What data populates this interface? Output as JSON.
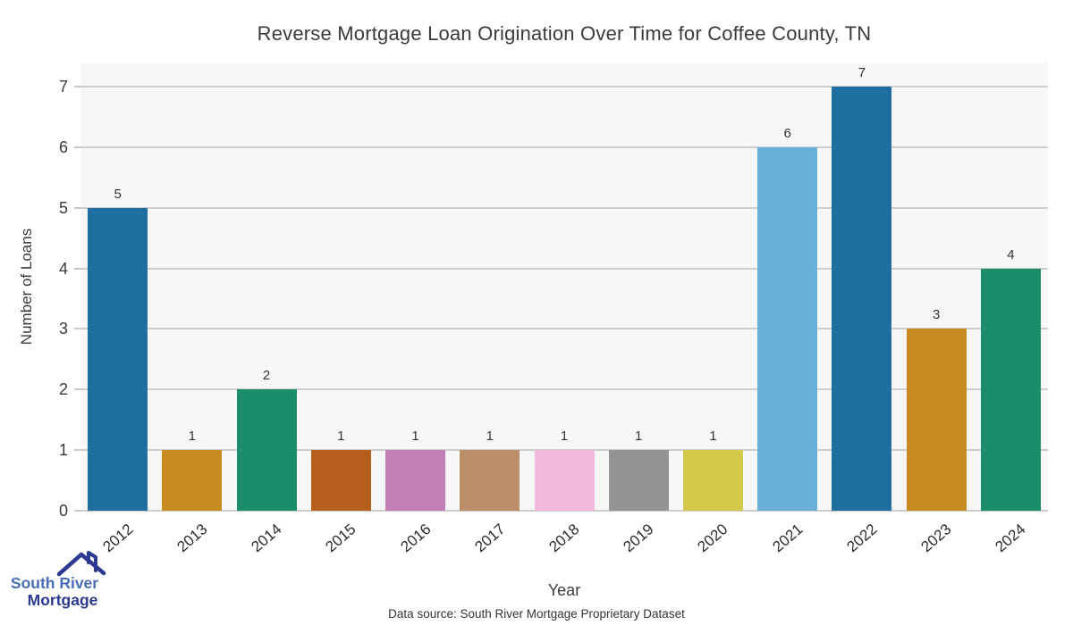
{
  "title": "Reverse Mortgage Loan Origination Over Time for Coffee County, TN",
  "footer": {
    "source": "Data source: South River Mortgage Proprietary Dataset"
  },
  "logo": {
    "line1": "South River",
    "line2": "Mortgage",
    "line1_color": "#4a6db8",
    "line2_color": "#2b3990",
    "roof_color": "#2b3990"
  },
  "chart_data": {
    "type": "bar",
    "title": "Reverse Mortgage Loan Origination Over Time for Coffee County, TN",
    "xlabel": "Year",
    "ylabel": "Number of Loans",
    "categories": [
      "2012",
      "2013",
      "2014",
      "2015",
      "2016",
      "2017",
      "2018",
      "2019",
      "2020",
      "2021",
      "2022",
      "2023",
      "2024"
    ],
    "values": [
      5,
      1,
      2,
      1,
      1,
      1,
      1,
      1,
      1,
      6,
      7,
      3,
      4
    ],
    "bar_colors": [
      "#1e6f9f",
      "#c78b1f",
      "#1a8e6a",
      "#b65e1c",
      "#c17fb5",
      "#bb8e68",
      "#f2badd",
      "#949494",
      "#d3c849",
      "#68b0d8",
      "#1e6f9f",
      "#c78b1f",
      "#1a8e6a"
    ],
    "yticks": [
      0,
      1,
      2,
      3,
      4,
      5,
      6,
      7
    ],
    "ylim": [
      0,
      7.4
    ],
    "grid": true,
    "legend": false,
    "bar_value_labels": true,
    "plot_background": "#f7f7f7",
    "grid_color": "#cdcdcd"
  }
}
